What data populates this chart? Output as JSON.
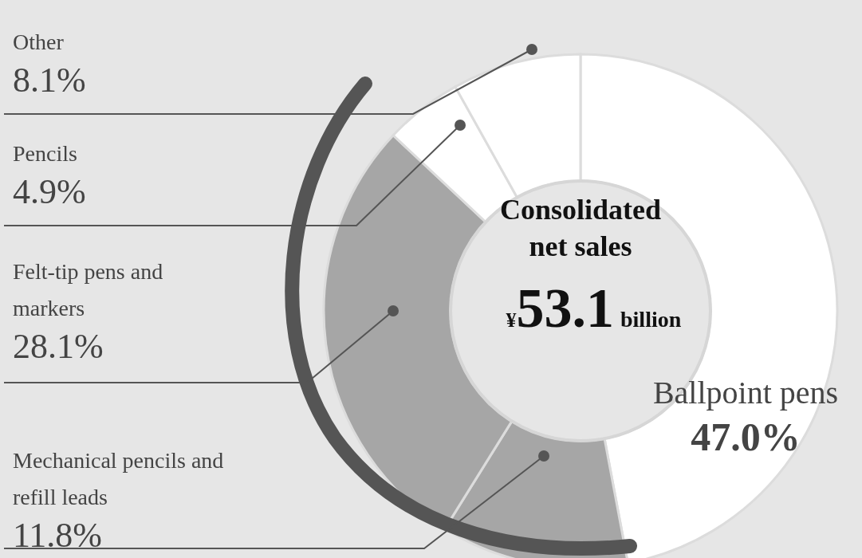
{
  "chart_data": {
    "type": "donut",
    "categories": [
      "Ballpoint pens",
      "Mechanical pencils and refill leads",
      "Felt-tip pens and markers",
      "Pencils",
      "Other"
    ],
    "values": [
      47.0,
      11.8,
      28.1,
      4.9,
      8.1
    ],
    "value_labels": [
      "47.0%",
      "11.8%",
      "28.1%",
      "4.9%",
      "8.1%"
    ],
    "colors": [
      "#ffffff",
      "#a6a6a6",
      "#a6a6a6",
      "#ffffff",
      "#ffffff"
    ],
    "annotations": [
      "Consolidated net sales",
      "¥53.1",
      "billion"
    ]
  }
}
